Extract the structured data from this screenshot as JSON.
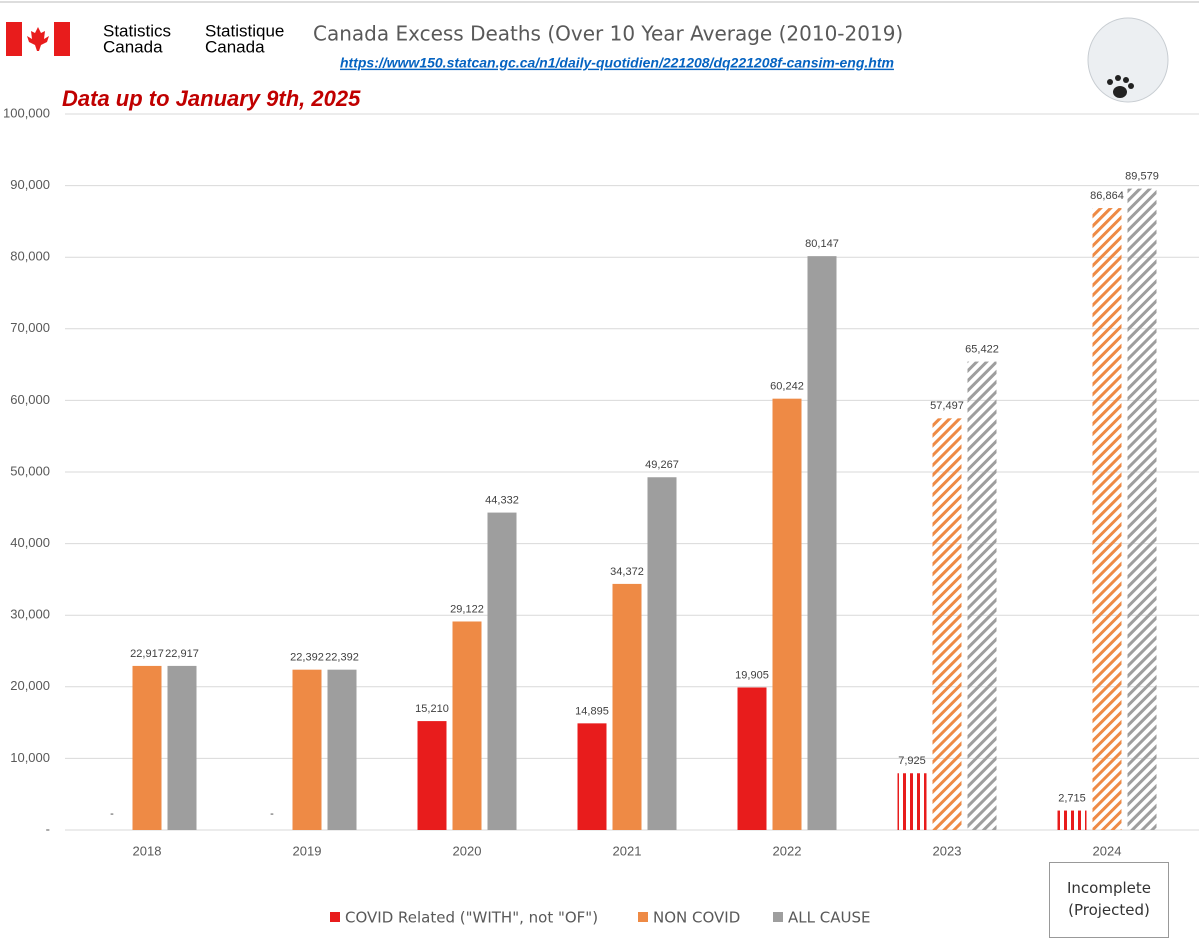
{
  "header": {
    "logo_en": [
      "Statistics",
      "Canada"
    ],
    "logo_fr": [
      "Statistique",
      "Canada"
    ]
  },
  "chart_data": {
    "type": "bar",
    "title": "Canada Excess Deaths (Over 10 Year Average (2010-2019)",
    "source_url": "https://www150.statcan.gc.ca/n1/daily-quotidien/221208/dq221208f-cansim-eng.htm",
    "subtitle": "Data up to January 9th, 2025",
    "annotation": "Incomplete (Projected)",
    "categories": [
      "2018",
      "2019",
      "2020",
      "2021",
      "2022",
      "2023",
      "2024"
    ],
    "hatched": [
      false,
      false,
      false,
      false,
      false,
      true,
      true
    ],
    "series": [
      {
        "name": "COVID Related (\"WITH\", not \"OF\")",
        "color": "#e81c1c",
        "values": [
          0,
          0,
          15210,
          14895,
          19905,
          7925,
          2715
        ],
        "value_labels": [
          "-",
          "-",
          "15,210",
          "14,895",
          "19,905",
          "7,925",
          "2,715"
        ]
      },
      {
        "name": "NON COVID",
        "color": "#ee8a45",
        "values": [
          22917,
          22392,
          29122,
          34372,
          60242,
          57497,
          86864
        ],
        "value_labels": [
          "22,917",
          "22,392",
          "29,122",
          "34,372",
          "60,242",
          "57,497",
          "86,864"
        ]
      },
      {
        "name": "ALL CAUSE",
        "color": "#9e9e9e",
        "values": [
          22917,
          22392,
          44332,
          49267,
          80147,
          65422,
          89579
        ],
        "value_labels": [
          "22,917",
          "22,392",
          "44,332",
          "49,267",
          "80,147",
          "65,422",
          "89,579"
        ]
      }
    ],
    "ylim": [
      0,
      100000
    ],
    "yticks": [
      {
        "value": 0,
        "label": "-"
      },
      {
        "value": 10000,
        "label": "10,000"
      },
      {
        "value": 20000,
        "label": "20,000"
      },
      {
        "value": 30000,
        "label": "30,000"
      },
      {
        "value": 40000,
        "label": "40,000"
      },
      {
        "value": 50000,
        "label": "50,000"
      },
      {
        "value": 60000,
        "label": "60,000"
      },
      {
        "value": 70000,
        "label": "70,000"
      },
      {
        "value": 80000,
        "label": "80,000"
      },
      {
        "value": 90000,
        "label": "90,000"
      },
      {
        "value": 100000,
        "label": "100,000"
      }
    ],
    "grid": true
  }
}
